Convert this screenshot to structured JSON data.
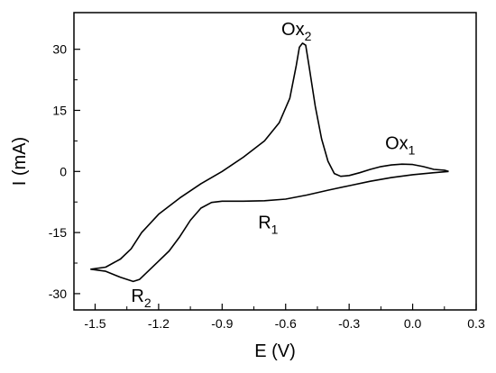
{
  "chart_data": {
    "type": "line",
    "xlabel": "E (V)",
    "ylabel": "I (mA)",
    "xlim": [
      -1.6,
      0.3
    ],
    "ylim": [
      -34,
      39
    ],
    "x_ticks": [
      -1.5,
      -1.2,
      -0.9,
      -0.6,
      -0.3,
      0.0,
      0.3
    ],
    "x_tick_labels": [
      "-1.5",
      "-1.2",
      "-0.9",
      "-0.6",
      "-0.3",
      "0.0",
      "0.3"
    ],
    "y_ticks": [
      -30,
      -15,
      0,
      15,
      30
    ],
    "y_tick_labels": [
      "-30",
      "-15",
      "0",
      "15",
      "30"
    ],
    "grid": false,
    "series": [
      {
        "points": [
          [
            0.17,
            0.0
          ],
          [
            0.1,
            -0.3
          ],
          [
            0.0,
            -0.8
          ],
          [
            -0.1,
            -1.5
          ],
          [
            -0.2,
            -2.4
          ],
          [
            -0.3,
            -3.5
          ],
          [
            -0.4,
            -4.6
          ],
          [
            -0.5,
            -5.8
          ],
          [
            -0.6,
            -6.8
          ],
          [
            -0.7,
            -7.2
          ],
          [
            -0.8,
            -7.3
          ],
          [
            -0.9,
            -7.3
          ],
          [
            -0.95,
            -7.6
          ],
          [
            -1.0,
            -9.0
          ],
          [
            -1.05,
            -12.0
          ],
          [
            -1.1,
            -16.0
          ],
          [
            -1.15,
            -19.5
          ],
          [
            -1.2,
            -22.0
          ],
          [
            -1.25,
            -24.5
          ],
          [
            -1.29,
            -26.5
          ],
          [
            -1.32,
            -27.0
          ],
          [
            -1.38,
            -26.0
          ],
          [
            -1.45,
            -24.5
          ],
          [
            -1.52,
            -24.0
          ],
          [
            -1.45,
            -23.5
          ],
          [
            -1.38,
            -21.5
          ],
          [
            -1.33,
            -19.0
          ],
          [
            -1.28,
            -15.0
          ],
          [
            -1.2,
            -10.5
          ],
          [
            -1.1,
            -6.5
          ],
          [
            -1.0,
            -3.0
          ],
          [
            -0.9,
            0.0
          ],
          [
            -0.8,
            3.5
          ],
          [
            -0.7,
            7.5
          ],
          [
            -0.63,
            12.0
          ],
          [
            -0.58,
            18.0
          ],
          [
            -0.55,
            26.0
          ],
          [
            -0.535,
            30.5
          ],
          [
            -0.52,
            31.5
          ],
          [
            -0.505,
            31.0
          ],
          [
            -0.49,
            26.0
          ],
          [
            -0.46,
            16.0
          ],
          [
            -0.43,
            8.0
          ],
          [
            -0.4,
            2.5
          ],
          [
            -0.37,
            -0.5
          ],
          [
            -0.34,
            -1.2
          ],
          [
            -0.3,
            -1.0
          ],
          [
            -0.25,
            -0.3
          ],
          [
            -0.2,
            0.5
          ],
          [
            -0.15,
            1.2
          ],
          [
            -0.1,
            1.6
          ],
          [
            -0.05,
            1.8
          ],
          [
            0.0,
            1.7
          ],
          [
            0.05,
            1.2
          ],
          [
            0.1,
            0.5
          ],
          [
            0.15,
            0.3
          ],
          [
            0.17,
            0.0
          ]
        ]
      }
    ],
    "annotations": [
      {
        "base": "Ox",
        "sub": "2",
        "x": -0.62,
        "y": 33.5
      },
      {
        "base": "Ox",
        "sub": "1",
        "x": -0.13,
        "y": 5.5
      },
      {
        "base": "R",
        "sub": "1",
        "x": -0.73,
        "y": -14.0
      },
      {
        "base": "R",
        "sub": "2",
        "x": -1.33,
        "y": -32.0
      }
    ]
  }
}
